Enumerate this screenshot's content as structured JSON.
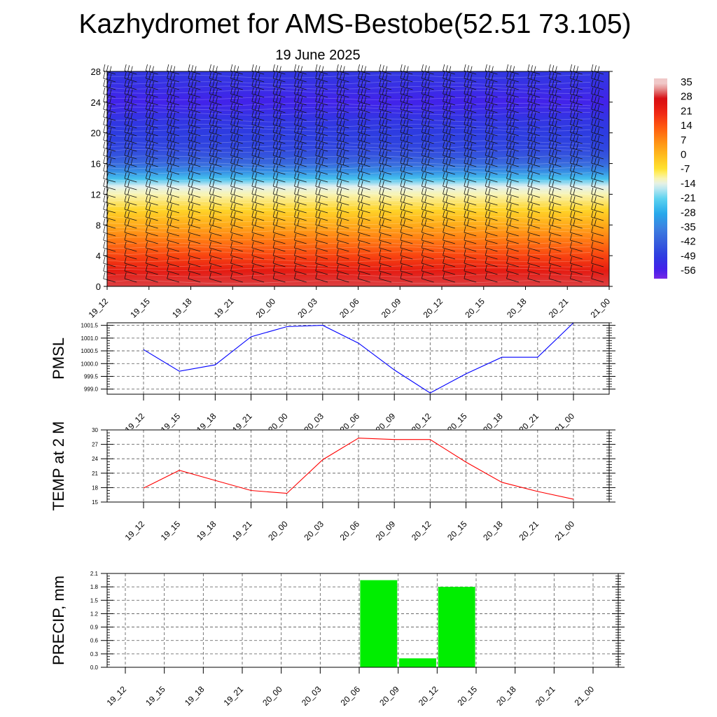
{
  "title": "Kazhydromet for AMS-Bestobe(52.51 73.105)",
  "subtitle": "19 June 2025",
  "chart_data": [
    {
      "type": "heatmap",
      "title": "",
      "xlabel": "",
      "ylabel": "",
      "x_ticks": [
        "19_12",
        "19_15",
        "19_18",
        "19_21",
        "20_00",
        "20_03",
        "20_06",
        "20_09",
        "20_12",
        "20_15",
        "20_18",
        "20_21",
        "21_00"
      ],
      "y_ticks": [
        0,
        4,
        8,
        12,
        16,
        20,
        24,
        28
      ],
      "ylim": [
        0,
        28
      ],
      "colorbar_labels": [
        "35",
        "28",
        "21",
        "14",
        "7",
        "0",
        "-7",
        "-14",
        "-21",
        "-28",
        "-35",
        "-42",
        "-49",
        "-56"
      ],
      "temperature_profile": [
        {
          "y": 0,
          "value": 30
        },
        {
          "y": 2,
          "value": 24
        },
        {
          "y": 4,
          "value": 17
        },
        {
          "y": 6,
          "value": 10
        },
        {
          "y": 8,
          "value": 3
        },
        {
          "y": 10,
          "value": -4
        },
        {
          "y": 12,
          "value": -11
        },
        {
          "y": 13,
          "value": -14
        },
        {
          "y": 14,
          "value": -24
        },
        {
          "y": 15,
          "value": -33
        },
        {
          "y": 16,
          "value": -40
        },
        {
          "y": 17,
          "value": -44
        },
        {
          "y": 18,
          "value": -47
        },
        {
          "y": 20,
          "value": -49
        },
        {
          "y": 22,
          "value": -51
        },
        {
          "y": 24,
          "value": -55
        },
        {
          "y": 26,
          "value": -52
        },
        {
          "y": 28,
          "value": -50
        }
      ],
      "wind_barbs": true
    },
    {
      "type": "line",
      "ylabel": "PMSL",
      "categories": [
        "19_12",
        "19_15",
        "19_18",
        "19_21",
        "20_00",
        "20_03",
        "20_06",
        "20_09",
        "20_12",
        "20_15",
        "20_18",
        "20_21",
        "21_00"
      ],
      "series": [
        {
          "values": [
            1000.55,
            999.7,
            999.95,
            1001.05,
            1001.45,
            1001.5,
            1000.8,
            999.75,
            998.85,
            999.6,
            1000.25,
            1000.25,
            1001.6
          ],
          "color": "#0000ff"
        }
      ],
      "ylim": [
        998.8,
        1001.6
      ],
      "y_ticks": [
        "999.0",
        "999.5",
        "1000.0",
        "1000.5",
        "1001.0",
        "1001.5"
      ],
      "grid": true
    },
    {
      "type": "line",
      "ylabel": "TEMP at 2 M",
      "categories": [
        "19_12",
        "19_15",
        "19_18",
        "19_21",
        "20_00",
        "20_03",
        "20_06",
        "20_09",
        "20_12",
        "20_15",
        "20_18",
        "20_21",
        "21_00"
      ],
      "series": [
        {
          "values": [
            17.9,
            21.6,
            19.5,
            17.4,
            16.8,
            23.8,
            28.3,
            28.0,
            28.0,
            23.3,
            19.1,
            17.2,
            15.6
          ],
          "color": "#ff0000"
        }
      ],
      "ylim": [
        15,
        30
      ],
      "y_ticks": [
        "15",
        "18",
        "21",
        "24",
        "27",
        "30"
      ],
      "grid": true
    },
    {
      "type": "bar",
      "ylabel": "PRECIP, mm",
      "categories": [
        "19_12",
        "19_15",
        "19_18",
        "19_21",
        "20_00",
        "20_03",
        "20_06",
        "20_09",
        "20_12",
        "20_15",
        "20_18",
        "20_21",
        "21_00"
      ],
      "values": [
        0,
        0,
        0,
        0,
        0,
        0,
        0,
        1.95,
        0.2,
        1.8,
        0,
        0,
        0
      ],
      "color": "#00ee00",
      "ylim": [
        0,
        2.1
      ],
      "y_ticks": [
        "0.0",
        "0.3",
        "0.6",
        "0.9",
        "1.2",
        "1.5",
        "1.8",
        "2.1"
      ],
      "grid": true
    }
  ]
}
